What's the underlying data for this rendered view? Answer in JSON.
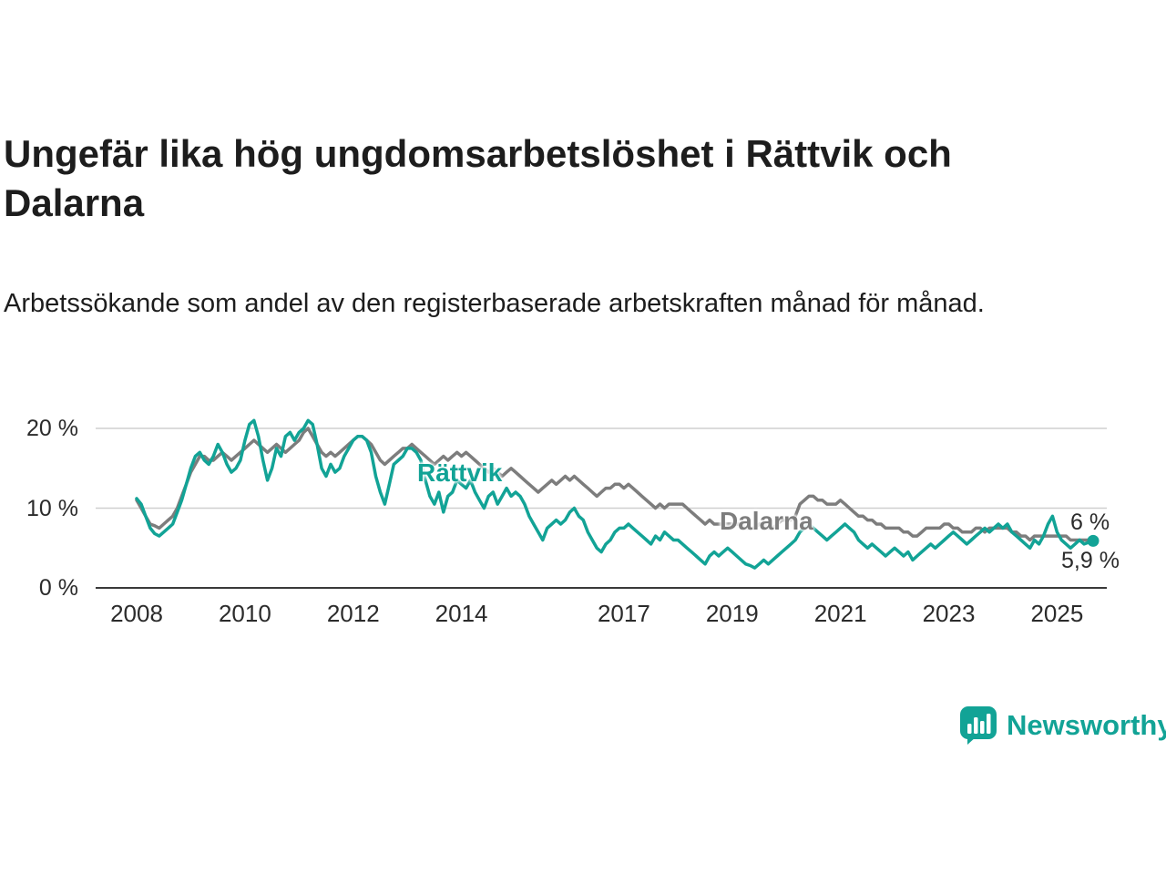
{
  "header": {
    "title": "Ungefär lika hög ungdomsarbetslöshet i Rättvik och Dalarna",
    "subtitle": "Arbetssökande som andel av den registerbaserade arbetskraften månad för månad."
  },
  "chart_data": {
    "type": "line",
    "title": "Ungefär lika hög ungdomsarbetslöshet i Rättvik och Dalarna",
    "x_start": {
      "year": 2008,
      "month": 1
    },
    "x_end": {
      "year": 2025,
      "month": 9
    },
    "x_tick_labels": [
      "2008",
      "2010",
      "2012",
      "2014",
      "2017",
      "2019",
      "2021",
      "2023",
      "2025"
    ],
    "y_ticks": [
      {
        "value": 0,
        "label": "0 %"
      },
      {
        "value": 10,
        "label": "10 %"
      },
      {
        "value": 20,
        "label": "20 %"
      }
    ],
    "ylim": [
      0,
      22
    ],
    "grid": "horizontal",
    "legend_position": "inline-labels",
    "series": [
      {
        "name": "Dalarna",
        "label_text": "Dalarna",
        "color": "#7d7d7d",
        "end_label": "6 %",
        "values": [
          11.0,
          10.0,
          9.0,
          8.0,
          7.8,
          7.5,
          8.0,
          8.5,
          9.0,
          10.0,
          11.5,
          13.0,
          14.5,
          15.5,
          16.5,
          16.5,
          16.0,
          16.0,
          16.5,
          17.0,
          16.5,
          16.0,
          16.5,
          17.0,
          17.5,
          18.0,
          18.5,
          18.0,
          17.5,
          17.0,
          17.5,
          18.0,
          17.5,
          17.0,
          17.5,
          18.0,
          18.5,
          19.5,
          20.0,
          19.0,
          18.0,
          17.0,
          16.5,
          17.0,
          16.5,
          17.0,
          17.5,
          18.0,
          18.5,
          19.0,
          19.0,
          18.5,
          18.0,
          17.0,
          16.0,
          15.5,
          16.0,
          16.5,
          17.0,
          17.5,
          17.5,
          18.0,
          17.5,
          17.0,
          16.5,
          16.0,
          15.5,
          16.0,
          16.5,
          16.0,
          16.5,
          17.0,
          16.5,
          17.0,
          16.5,
          16.0,
          15.5,
          15.0,
          14.5,
          15.0,
          14.5,
          14.0,
          14.5,
          15.0,
          14.5,
          14.0,
          13.5,
          13.0,
          12.5,
          12.0,
          12.5,
          13.0,
          13.5,
          13.0,
          13.5,
          14.0,
          13.5,
          14.0,
          13.5,
          13.0,
          12.5,
          12.0,
          11.5,
          12.0,
          12.5,
          12.5,
          13.0,
          13.0,
          12.5,
          13.0,
          12.5,
          12.0,
          11.5,
          11.0,
          10.5,
          10.0,
          10.5,
          10.0,
          10.5,
          10.5,
          10.5,
          10.5,
          10.0,
          9.5,
          9.0,
          8.5,
          8.0,
          8.5,
          8.0,
          8.0,
          8.0,
          8.0,
          8.0,
          8.0,
          8.0,
          7.5,
          7.5,
          7.5,
          8.0,
          8.0,
          7.5,
          7.5,
          8.0,
          8.5,
          8.5,
          8.5,
          9.0,
          10.5,
          11.0,
          11.5,
          11.5,
          11.0,
          11.0,
          10.5,
          10.5,
          10.5,
          11.0,
          10.5,
          10.0,
          9.5,
          9.0,
          9.0,
          8.5,
          8.5,
          8.0,
          8.0,
          7.5,
          7.5,
          7.5,
          7.5,
          7.0,
          7.0,
          6.5,
          6.5,
          7.0,
          7.5,
          7.5,
          7.5,
          7.5,
          8.0,
          8.0,
          7.5,
          7.5,
          7.0,
          7.0,
          7.0,
          7.5,
          7.5,
          7.0,
          7.5,
          7.5,
          7.5,
          7.5,
          7.5,
          7.0,
          7.0,
          6.5,
          6.5,
          6.0,
          6.5,
          6.5,
          6.5,
          6.5,
          6.5,
          6.5,
          6.5,
          6.5,
          6.0,
          6.0,
          6.0,
          6.0,
          6.0,
          6.0
        ]
      },
      {
        "name": "Rättvik",
        "label_text": "Rättvik",
        "color": "#12a396",
        "end_label": "5,9 %",
        "values": [
          11.2,
          10.5,
          9.0,
          7.5,
          6.8,
          6.5,
          7.0,
          7.5,
          8.0,
          9.5,
          11.0,
          13.0,
          15.0,
          16.5,
          17.0,
          16.0,
          15.5,
          16.5,
          18.0,
          17.0,
          15.5,
          14.5,
          15.0,
          16.0,
          18.5,
          20.5,
          21.0,
          19.0,
          16.0,
          13.5,
          15.0,
          17.5,
          16.5,
          19.0,
          19.5,
          18.5,
          19.5,
          20.0,
          21.0,
          20.5,
          18.0,
          15.0,
          14.0,
          15.5,
          14.5,
          15.0,
          16.5,
          17.5,
          18.5,
          19.0,
          19.0,
          18.5,
          17.0,
          14.0,
          12.0,
          10.5,
          13.0,
          15.5,
          16.0,
          16.5,
          17.5,
          17.5,
          17.0,
          16.0,
          13.5,
          11.5,
          10.5,
          12.0,
          9.5,
          11.5,
          12.0,
          13.5,
          13.0,
          12.5,
          13.5,
          12.0,
          11.0,
          10.0,
          11.5,
          12.0,
          10.5,
          11.5,
          12.5,
          11.5,
          12.0,
          11.5,
          10.5,
          9.0,
          8.0,
          7.0,
          6.0,
          7.5,
          8.0,
          8.5,
          8.0,
          8.5,
          9.5,
          10.0,
          9.0,
          8.5,
          7.0,
          6.0,
          5.0,
          4.5,
          5.5,
          6.0,
          7.0,
          7.5,
          7.5,
          8.0,
          7.5,
          7.0,
          6.5,
          6.0,
          5.5,
          6.5,
          6.0,
          7.0,
          6.5,
          6.0,
          6.0,
          5.5,
          5.0,
          4.5,
          4.0,
          3.5,
          3.0,
          4.0,
          4.5,
          4.0,
          4.5,
          5.0,
          4.5,
          4.0,
          3.5,
          3.0,
          2.8,
          2.5,
          3.0,
          3.5,
          3.0,
          3.5,
          4.0,
          4.5,
          5.0,
          5.5,
          6.0,
          7.0,
          7.5,
          8.0,
          7.5,
          7.0,
          6.5,
          6.0,
          6.5,
          7.0,
          7.5,
          8.0,
          7.5,
          7.0,
          6.0,
          5.5,
          5.0,
          5.5,
          5.0,
          4.5,
          4.0,
          4.5,
          5.0,
          4.5,
          4.0,
          4.5,
          3.5,
          4.0,
          4.5,
          5.0,
          5.5,
          5.0,
          5.5,
          6.0,
          6.5,
          7.0,
          6.5,
          6.0,
          5.5,
          6.0,
          6.5,
          7.0,
          7.5,
          7.0,
          7.5,
          8.0,
          7.5,
          8.0,
          7.0,
          6.5,
          6.0,
          5.5,
          5.0,
          6.0,
          5.5,
          6.5,
          8.0,
          9.0,
          7.0,
          6.0,
          5.5,
          5.0,
          5.5,
          6.0,
          5.5,
          5.7,
          5.9
        ]
      }
    ]
  },
  "annotations": {
    "rattvik_label": "Rättvik",
    "dalarna_label": "Dalarna",
    "dalarna_end_value": "6 %",
    "rattvik_end_value": "5,9 %"
  },
  "branding": {
    "logo_text": "Newsworthy",
    "logo_color": "#12a396"
  }
}
